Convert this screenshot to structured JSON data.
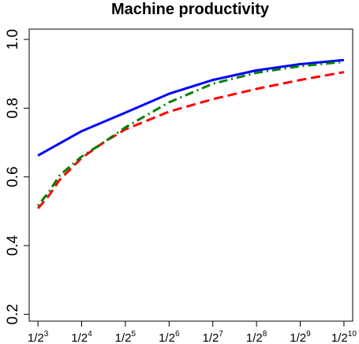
{
  "chart_data": {
    "type": "line",
    "title": "Machine productivity",
    "xlabel": "",
    "ylabel": "",
    "x_tick_labels": [
      {
        "base": "1/2",
        "exp": "3"
      },
      {
        "base": "1/2",
        "exp": "4"
      },
      {
        "base": "1/2",
        "exp": "5"
      },
      {
        "base": "1/2",
        "exp": "6"
      },
      {
        "base": "1/2",
        "exp": "7"
      },
      {
        "base": "1/2",
        "exp": "8"
      },
      {
        "base": "1/2",
        "exp": "9"
      },
      {
        "base": "1/2",
        "exp": "10"
      }
    ],
    "x_exponents": [
      3,
      4,
      5,
      6,
      7,
      8,
      9,
      10
    ],
    "y_ticks": [
      0.2,
      0.4,
      0.6,
      0.8,
      1.0
    ],
    "y_tick_labels": [
      "0.2",
      "0.4",
      "0.6",
      "0.8",
      "1.0"
    ],
    "ylim": [
      0.18,
      1.03
    ],
    "xlim": [
      2.8,
      10.2
    ],
    "grid": false,
    "legend": "none",
    "series": [
      {
        "color": "#0000ff",
        "style": "solid",
        "x": [
          3,
          4,
          5,
          6,
          7,
          8,
          9,
          10
        ],
        "values": [
          0.662,
          0.733,
          0.787,
          0.842,
          0.882,
          0.91,
          0.928,
          0.94
        ]
      },
      {
        "color": "#ff0000",
        "style": "dashed",
        "x": [
          3,
          3.25,
          3.5,
          4,
          4.5,
          5,
          6,
          7,
          8,
          9,
          10
        ],
        "values": [
          0.508,
          0.545,
          0.592,
          0.655,
          0.7,
          0.738,
          0.79,
          0.826,
          0.856,
          0.882,
          0.905
        ]
      },
      {
        "color": "#008000",
        "style": "dotdash",
        "x": [
          3,
          3.25,
          3.5,
          4,
          4.5,
          5,
          6,
          7,
          8,
          9,
          10
        ],
        "values": [
          0.516,
          0.556,
          0.605,
          0.659,
          0.7,
          0.744,
          0.817,
          0.871,
          0.903,
          0.922,
          0.935
        ]
      }
    ]
  }
}
